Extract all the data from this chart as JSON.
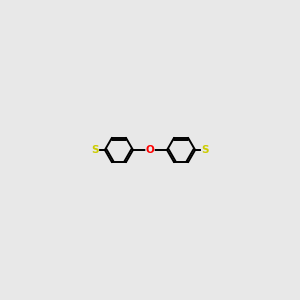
{
  "background_color": "#e8e8e8",
  "line_color": "#000000",
  "line_width": 1.4,
  "atom_colors": {
    "O": "#ff0000",
    "N": "#0000cd",
    "S": "#cccc00",
    "C": "#000000"
  },
  "font_size_atom": 7.5,
  "figsize": [
    3.0,
    3.0
  ],
  "dpi": 100
}
